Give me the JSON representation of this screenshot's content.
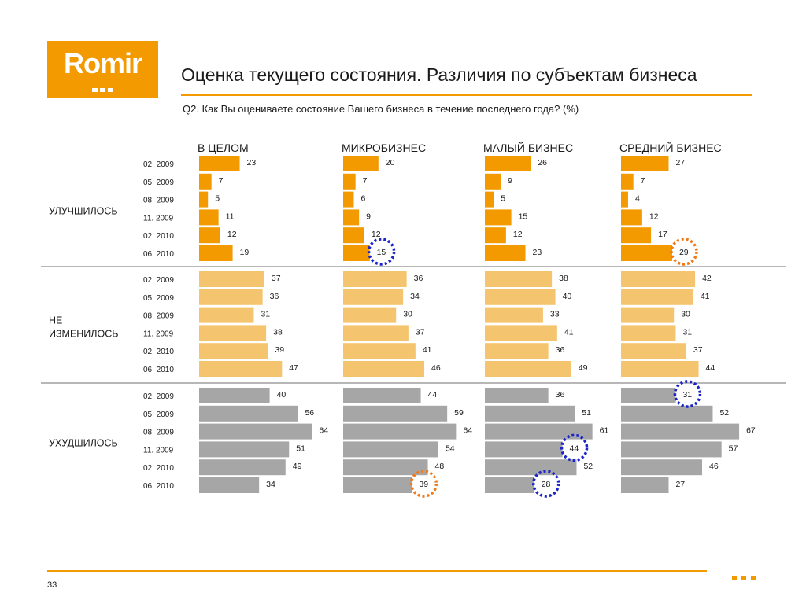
{
  "logo": {
    "text": "Romir"
  },
  "title": "Оценка текущего состояния. Различия по субъектам бизнеса",
  "question": "Q2. Как Вы оцениваете состояние Вашего бизнеса в течение последнего года? (%)",
  "page_number": "33",
  "colors": {
    "accent": "#f29a00",
    "improved": "#f29a00",
    "unchanged": "#f5c46e",
    "worsened": "#a6a6a6",
    "circle_blue": "#1a24c8",
    "circle_orange": "#f07a1a"
  },
  "chart_data": {
    "type": "bar",
    "orientation": "horizontal",
    "periods": [
      "02. 2009",
      "05. 2009",
      "08. 2009",
      "11. 2009",
      "02. 2010",
      "06. 2010"
    ],
    "columns": [
      "В ЦЕЛОМ",
      "МИКРОБИЗНЕС",
      "МАЛЫЙ БИЗНЕС",
      "СРЕДНИЙ БИЗНЕС"
    ],
    "groups": [
      {
        "label": "УЛУЧШИЛОСЬ",
        "color_key": "improved",
        "series": [
          {
            "column": "В ЦЕЛОМ",
            "values": [
              23,
              7,
              5,
              11,
              12,
              19
            ]
          },
          {
            "column": "МИКРОБИЗНЕС",
            "values": [
              20,
              7,
              6,
              9,
              12,
              15
            ]
          },
          {
            "column": "МАЛЫЙ БИЗНЕС",
            "values": [
              26,
              9,
              5,
              15,
              12,
              23
            ]
          },
          {
            "column": "СРЕДНИЙ БИЗНЕС",
            "values": [
              27,
              7,
              4,
              12,
              17,
              29
            ]
          }
        ]
      },
      {
        "label": "НЕ ИЗМЕНИЛОСЬ",
        "color_key": "unchanged",
        "series": [
          {
            "column": "В ЦЕЛОМ",
            "values": [
              37,
              36,
              31,
              38,
              39,
              47
            ]
          },
          {
            "column": "МИКРОБИЗНЕС",
            "values": [
              36,
              34,
              30,
              37,
              41,
              46
            ]
          },
          {
            "column": "МАЛЫЙ БИЗНЕС",
            "values": [
              38,
              40,
              33,
              41,
              36,
              49
            ]
          },
          {
            "column": "СРЕДНИЙ БИЗНЕС",
            "values": [
              42,
              41,
              30,
              31,
              37,
              44
            ]
          }
        ]
      },
      {
        "label": "УХУДШИЛОСЬ",
        "color_key": "worsened",
        "series": [
          {
            "column": "В ЦЕЛОМ",
            "values": [
              40,
              56,
              64,
              51,
              49,
              34
            ]
          },
          {
            "column": "МИКРОБИЗНЕС",
            "values": [
              44,
              59,
              64,
              54,
              48,
              39
            ]
          },
          {
            "column": "МАЛЫЙ БИЗНЕС",
            "values": [
              36,
              51,
              61,
              44,
              52,
              28
            ]
          },
          {
            "column": "СРЕДНИЙ БИЗНЕС",
            "values": [
              31,
              52,
              67,
              57,
              46,
              27
            ]
          }
        ]
      }
    ],
    "highlights": [
      {
        "group": 0,
        "column": 1,
        "period": 5,
        "color_key": "circle_blue"
      },
      {
        "group": 0,
        "column": 3,
        "period": 5,
        "color_key": "circle_orange"
      },
      {
        "group": 2,
        "column": 1,
        "period": 5,
        "color_key": "circle_orange"
      },
      {
        "group": 2,
        "column": 2,
        "period": 3,
        "color_key": "circle_blue"
      },
      {
        "group": 2,
        "column": 2,
        "period": 5,
        "color_key": "circle_blue"
      },
      {
        "group": 2,
        "column": 3,
        "period": 0,
        "color_key": "circle_blue"
      }
    ]
  }
}
